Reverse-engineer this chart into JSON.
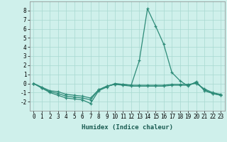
{
  "xlabel": "Humidex (Indice chaleur)",
  "x": [
    0,
    1,
    2,
    3,
    4,
    5,
    6,
    7,
    8,
    9,
    10,
    11,
    12,
    13,
    14,
    15,
    16,
    17,
    18,
    19,
    20,
    21,
    22,
    23
  ],
  "line1": [
    0.0,
    -0.5,
    -1.0,
    -1.3,
    -1.6,
    -1.7,
    -1.8,
    -2.2,
    -0.8,
    -0.4,
    0.0,
    -0.1,
    -0.2,
    2.5,
    8.2,
    6.3,
    4.3,
    1.2,
    0.3,
    -0.3,
    0.2,
    -0.8,
    -1.1,
    -1.3
  ],
  "line2": [
    0.0,
    -0.5,
    -0.9,
    -1.1,
    -1.4,
    -1.5,
    -1.6,
    -1.8,
    -0.7,
    -0.3,
    -0.1,
    -0.2,
    -0.3,
    -0.3,
    -0.3,
    -0.3,
    -0.3,
    -0.2,
    -0.2,
    -0.2,
    0.1,
    -0.7,
    -1.1,
    -1.3
  ],
  "line3": [
    0.0,
    -0.4,
    -0.8,
    -0.9,
    -1.2,
    -1.3,
    -1.4,
    -1.6,
    -0.7,
    -0.3,
    -0.1,
    -0.1,
    -0.2,
    -0.2,
    -0.2,
    -0.2,
    -0.2,
    -0.1,
    -0.1,
    -0.1,
    0.0,
    -0.6,
    -1.0,
    -1.2
  ],
  "line_color": "#2d8b78",
  "bg_color": "#cff0eb",
  "grid_color": "#a8d8d0",
  "ylim": [
    -3,
    9
  ],
  "xlim": [
    -0.5,
    23.5
  ],
  "yticks": [
    -2,
    -1,
    0,
    1,
    2,
    3,
    4,
    5,
    6,
    7,
    8
  ],
  "xticks": [
    0,
    1,
    2,
    3,
    4,
    5,
    6,
    7,
    8,
    9,
    10,
    11,
    12,
    13,
    14,
    15,
    16,
    17,
    18,
    19,
    20,
    21,
    22,
    23
  ],
  "xlabel_fontsize": 6.5,
  "tick_fontsize": 5.5
}
